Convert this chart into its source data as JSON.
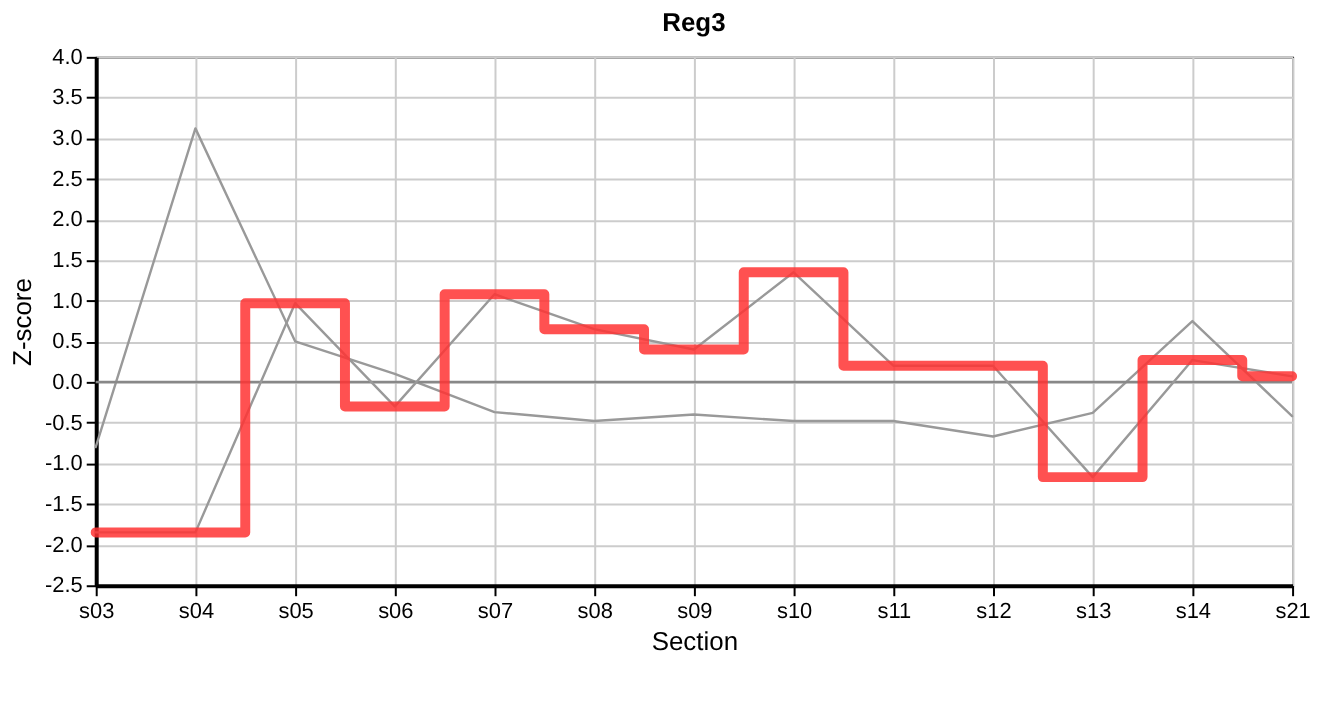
{
  "chart_data": {
    "type": "line",
    "title": "Reg3",
    "xlabel": "Section",
    "ylabel": "Z-score",
    "categories": [
      "s03",
      "s04",
      "s05",
      "s06",
      "s07",
      "s08",
      "s09",
      "s10",
      "s11",
      "s12",
      "s13",
      "s14",
      "s21"
    ],
    "series": [
      {
        "color": "#999999",
        "values": [
          -0.8,
          3.12,
          0.5,
          0.1,
          -0.37,
          -0.48,
          -0.4,
          -0.48,
          -0.48,
          -0.67,
          -0.38,
          0.75,
          -0.42
        ]
      },
      {
        "color": "#999999",
        "values": [
          -1.85,
          -1.85,
          0.97,
          -0.3,
          1.08,
          0.65,
          0.4,
          1.35,
          0.2,
          0.2,
          -1.17,
          0.27,
          0.07
        ]
      },
      {
        "type": "step",
        "color": "#ff3333",
        "values": [
          -1.85,
          -1.85,
          0.97,
          -0.3,
          1.08,
          0.65,
          0.4,
          1.35,
          0.2,
          0.2,
          -1.17,
          0.27,
          0.07
        ]
      }
    ],
    "ylim": [
      -2.5,
      4
    ],
    "yticks": [
      {
        "value": -2.5,
        "label": "-2.5"
      },
      {
        "value": -2,
        "label": "-2.0"
      },
      {
        "value": -1.5,
        "label": "-1.5"
      },
      {
        "value": -1,
        "label": "-1.0"
      },
      {
        "value": -0.5,
        "label": "-0.5"
      },
      {
        "value": 0,
        "label": "0.0"
      },
      {
        "value": 0.5,
        "label": "0.5"
      },
      {
        "value": 1,
        "label": "1.0"
      },
      {
        "value": 1.5,
        "label": "1.5"
      },
      {
        "value": 2,
        "label": "2.0"
      },
      {
        "value": 2.5,
        "label": "2.5"
      },
      {
        "value": 3,
        "label": "3.0"
      },
      {
        "value": 3.5,
        "label": "3.5"
      },
      {
        "value": 4,
        "label": "4.0"
      }
    ],
    "ref_lines": [
      {
        "axis": "y",
        "value": 0,
        "color": "#888888"
      }
    ],
    "grid": true,
    "legend": false,
    "marker": "none"
  }
}
